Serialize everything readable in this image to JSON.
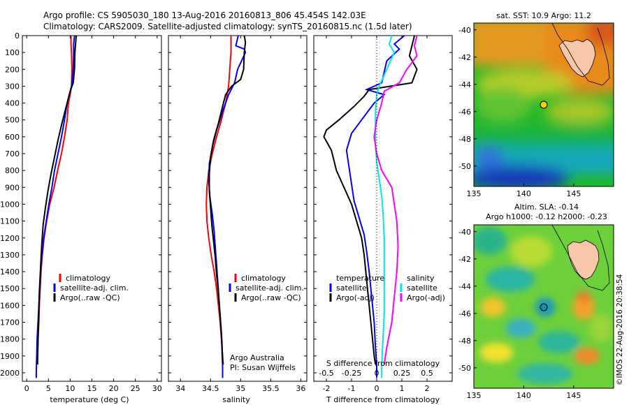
{
  "header": {
    "line1": "Argo profile: CS 5905030_180 13-Aug-2016 20160813_806 45.454S 142.03E",
    "line2": "Climatology: CARS2009. Satellite-adjusted climatology: synTS_20160815.nc (1.5d later)"
  },
  "timestamp": "©IMOS 22-Aug-2016 20:38:54",
  "colors": {
    "climatology": "#ff0000",
    "satellite": "#0000ff",
    "argo": "#000000",
    "sat_cyan": "#00e5ee",
    "argo_magenta": "#ff00ff"
  },
  "depth_axis": {
    "ticks": [
      "0",
      "100",
      "200",
      "300",
      "400",
      "500",
      "600",
      "700",
      "800",
      "900",
      "1000",
      "1100",
      "1200",
      "1300",
      "1400",
      "1500",
      "1600",
      "1700",
      "1800",
      "1900",
      "2000"
    ],
    "range": [
      0,
      2050
    ]
  },
  "chart_data": [
    {
      "type": "line",
      "id": "temperature",
      "xlabel": "temperature (deg C)",
      "xlim": [
        -1,
        31
      ],
      "xticks": [
        "0",
        "5",
        "10",
        "15",
        "20",
        "25",
        "30"
      ],
      "ylim": [
        0,
        2050
      ],
      "legend": [
        "climatology",
        "satellite-adj. clim.",
        "Argo(..raw -QC)"
      ],
      "series": [
        {
          "key": "clim",
          "color": "#ff0000",
          "points": [
            [
              10.2,
              0
            ],
            [
              10.2,
              50
            ],
            [
              10.3,
              100
            ],
            [
              10.4,
              200
            ],
            [
              10.3,
              300
            ],
            [
              10.0,
              350
            ],
            [
              9.6,
              400
            ],
            [
              9.3,
              500
            ],
            [
              8.7,
              600
            ],
            [
              8.0,
              700
            ],
            [
              7.1,
              800
            ],
            [
              6.3,
              900
            ],
            [
              5.3,
              1000
            ],
            [
              4.6,
              1100
            ],
            [
              4.0,
              1200
            ],
            [
              3.6,
              1300
            ],
            [
              3.3,
              1400
            ],
            [
              3.1,
              1500
            ],
            [
              2.9,
              1600
            ],
            [
              2.8,
              1700
            ],
            [
              2.6,
              1800
            ],
            [
              2.5,
              1900
            ],
            [
              2.4,
              1950
            ]
          ]
        },
        {
          "key": "sat",
          "color": "#0000ff",
          "points": [
            [
              11.0,
              0
            ],
            [
              10.8,
              50
            ],
            [
              10.8,
              100
            ],
            [
              10.7,
              200
            ],
            [
              10.3,
              300
            ],
            [
              9.8,
              350
            ],
            [
              9.3,
              400
            ],
            [
              8.7,
              500
            ],
            [
              8.0,
              600
            ],
            [
              7.2,
              700
            ],
            [
              6.4,
              800
            ],
            [
              5.8,
              900
            ],
            [
              5.1,
              1000
            ],
            [
              4.5,
              1100
            ],
            [
              3.9,
              1200
            ],
            [
              3.5,
              1300
            ],
            [
              3.2,
              1400
            ],
            [
              3.0,
              1500
            ],
            [
              2.8,
              1600
            ],
            [
              2.6,
              1700
            ],
            [
              2.4,
              1800
            ],
            [
              2.3,
              1900
            ],
            [
              2.2,
              2000
            ],
            [
              2.2,
              2030
            ]
          ]
        },
        {
          "key": "argo",
          "color": "#000000",
          "points": [
            [
              11.4,
              0
            ],
            [
              11.3,
              30
            ],
            [
              11.1,
              100
            ],
            [
              11.0,
              200
            ],
            [
              10.7,
              280
            ],
            [
              10.0,
              330
            ],
            [
              9.5,
              380
            ],
            [
              8.8,
              450
            ],
            [
              8.0,
              530
            ],
            [
              7.2,
              620
            ],
            [
              6.4,
              720
            ],
            [
              5.6,
              820
            ],
            [
              4.9,
              920
            ],
            [
              4.3,
              1020
            ],
            [
              3.8,
              1120
            ],
            [
              3.5,
              1220
            ],
            [
              3.3,
              1320
            ],
            [
              3.1,
              1420
            ],
            [
              2.9,
              1520
            ],
            [
              2.8,
              1620
            ],
            [
              2.7,
              1720
            ],
            [
              2.6,
              1820
            ],
            [
              2.5,
              1920
            ],
            [
              2.5,
              1950
            ]
          ]
        }
      ]
    },
    {
      "type": "line",
      "id": "salinity",
      "xlabel": "salinity",
      "xlim": [
        33.8,
        36.1
      ],
      "xticks": [
        "34",
        "34.5",
        "35",
        "35.5",
        "36"
      ],
      "ylim": [
        0,
        2050
      ],
      "legend": [
        "climatology",
        "satellite-adj. clim.",
        "Argo(..raw -QC)"
      ],
      "notes": [
        "Argo Australia",
        "PI: Susan Wijffels"
      ],
      "series": [
        {
          "key": "clim",
          "color": "#ff0000",
          "points": [
            [
              34.84,
              0
            ],
            [
              34.84,
              100
            ],
            [
              34.82,
              200
            ],
            [
              34.8,
              300
            ],
            [
              34.75,
              400
            ],
            [
              34.68,
              500
            ],
            [
              34.6,
              600
            ],
            [
              34.53,
              700
            ],
            [
              34.47,
              800
            ],
            [
              34.44,
              900
            ],
            [
              34.43,
              1000
            ],
            [
              34.44,
              1100
            ],
            [
              34.47,
              1200
            ],
            [
              34.51,
              1300
            ],
            [
              34.56,
              1400
            ],
            [
              34.6,
              1500
            ],
            [
              34.63,
              1600
            ],
            [
              34.66,
              1700
            ],
            [
              34.68,
              1800
            ],
            [
              34.7,
              1900
            ],
            [
              34.71,
              1950
            ]
          ]
        },
        {
          "key": "sat",
          "color": "#0000ff",
          "points": [
            [
              34.96,
              0
            ],
            [
              34.92,
              60
            ],
            [
              35.06,
              80
            ],
            [
              35.08,
              100
            ],
            [
              34.95,
              200
            ],
            [
              34.9,
              280
            ],
            [
              34.8,
              350
            ],
            [
              34.7,
              450
            ],
            [
              34.6,
              560
            ],
            [
              34.53,
              660
            ],
            [
              34.48,
              760
            ],
            [
              34.47,
              860
            ],
            [
              34.49,
              960
            ],
            [
              34.53,
              1060
            ],
            [
              34.56,
              1160
            ],
            [
              34.58,
              1260
            ],
            [
              34.6,
              1360
            ],
            [
              34.62,
              1460
            ],
            [
              34.64,
              1560
            ],
            [
              34.66,
              1660
            ],
            [
              34.68,
              1760
            ],
            [
              34.69,
              1860
            ],
            [
              34.7,
              1960
            ],
            [
              34.7,
              2030
            ]
          ]
        },
        {
          "key": "argo",
          "color": "#000000",
          "points": [
            [
              35.06,
              0
            ],
            [
              35.08,
              40
            ],
            [
              35.06,
              100
            ],
            [
              35.05,
              200
            ],
            [
              35.0,
              260
            ],
            [
              34.85,
              300
            ],
            [
              34.75,
              350
            ],
            [
              34.7,
              420
            ],
            [
              34.63,
              520
            ],
            [
              34.55,
              620
            ],
            [
              34.5,
              720
            ],
            [
              34.48,
              820
            ],
            [
              34.48,
              920
            ],
            [
              34.5,
              1020
            ],
            [
              34.52,
              1120
            ],
            [
              34.55,
              1220
            ],
            [
              34.58,
              1320
            ],
            [
              34.6,
              1420
            ],
            [
              34.63,
              1520
            ],
            [
              34.65,
              1620
            ],
            [
              34.67,
              1720
            ],
            [
              34.69,
              1820
            ],
            [
              34.7,
              1920
            ],
            [
              34.71,
              1950
            ]
          ]
        }
      ]
    },
    {
      "type": "line",
      "id": "difference",
      "xlabel": "T difference from climatology",
      "xlabel_top": "S difference from climatology",
      "xlim": [
        -2.5,
        3.0
      ],
      "xticks": [
        "-2",
        "-1",
        "0",
        "1",
        "2"
      ],
      "xticks_top": [
        "-0.5",
        "-0.25",
        "0",
        "0.25",
        "0.5"
      ],
      "ylim": [
        0,
        2050
      ],
      "legend_temperature": [
        "temperature",
        "satellite",
        "Argo(-adj)"
      ],
      "legend_salinity": [
        "salinity",
        "satellite",
        "Argo(-adj)"
      ],
      "series": [
        {
          "key": "t_sat",
          "color": "#0000ff",
          "points": [
            [
              1.1,
              0
            ],
            [
              0.7,
              50
            ],
            [
              0.9,
              80
            ],
            [
              0.4,
              150
            ],
            [
              0.2,
              280
            ],
            [
              -0.4,
              320
            ],
            [
              0.3,
              350
            ],
            [
              -0.1,
              400
            ],
            [
              -0.6,
              500
            ],
            [
              -1.0,
              580
            ],
            [
              -1.2,
              680
            ],
            [
              -1.1,
              780
            ],
            [
              -1.0,
              880
            ],
            [
              -0.9,
              980
            ],
            [
              -0.7,
              1080
            ],
            [
              -0.5,
              1180
            ],
            [
              -0.4,
              1280
            ],
            [
              -0.3,
              1400
            ],
            [
              -0.2,
              1550
            ],
            [
              -0.1,
              1700
            ],
            [
              -0.05,
              1850
            ],
            [
              0,
              1950
            ],
            [
              0,
              2030
            ]
          ]
        },
        {
          "key": "t_argo",
          "color": "#000000",
          "points": [
            [
              1.5,
              0
            ],
            [
              1.4,
              60
            ],
            [
              1.3,
              120
            ],
            [
              1.6,
              200
            ],
            [
              1.4,
              280
            ],
            [
              -0.3,
              320
            ],
            [
              -0.5,
              360
            ],
            [
              -0.9,
              420
            ],
            [
              -1.5,
              500
            ],
            [
              -2.0,
              560
            ],
            [
              -2.1,
              600
            ],
            [
              -1.8,
              680
            ],
            [
              -1.6,
              800
            ],
            [
              -1.3,
              900
            ],
            [
              -1.0,
              1000
            ],
            [
              -0.8,
              1100
            ],
            [
              -0.6,
              1200
            ],
            [
              -0.5,
              1300
            ],
            [
              -0.4,
              1450
            ],
            [
              -0.3,
              1600
            ],
            [
              -0.2,
              1750
            ],
            [
              -0.1,
              1900
            ],
            [
              -0.05,
              1950
            ]
          ]
        },
        {
          "key": "s_sat",
          "color": "#00e5ee",
          "points": [
            [
              0.6,
              0
            ],
            [
              0.5,
              50
            ],
            [
              0.7,
              100
            ],
            [
              0.4,
              200
            ],
            [
              0.1,
              300
            ],
            [
              0.0,
              350
            ],
            [
              -0.05,
              450
            ],
            [
              -0.05,
              550
            ],
            [
              -0.05,
              650
            ],
            [
              0.0,
              750
            ],
            [
              0.1,
              850
            ],
            [
              0.2,
              950
            ],
            [
              0.25,
              1050
            ],
            [
              0.3,
              1200
            ],
            [
              0.3,
              1350
            ],
            [
              0.3,
              1500
            ],
            [
              0.3,
              1650
            ],
            [
              0.25,
              1800
            ],
            [
              0.2,
              1950
            ],
            [
              0.2,
              2030
            ]
          ]
        },
        {
          "key": "s_argo",
          "color": "#ff00ff",
          "points": [
            [
              1.6,
              0
            ],
            [
              1.5,
              60
            ],
            [
              1.6,
              120
            ],
            [
              1.2,
              200
            ],
            [
              0.9,
              280
            ],
            [
              0.3,
              330
            ],
            [
              0.2,
              400
            ],
            [
              0.0,
              500
            ],
            [
              -0.1,
              600
            ],
            [
              0.0,
              700
            ],
            [
              0.2,
              800
            ],
            [
              0.6,
              900
            ],
            [
              0.7,
              1000
            ],
            [
              0.8,
              1100
            ],
            [
              0.85,
              1250
            ],
            [
              0.8,
              1400
            ],
            [
              0.7,
              1550
            ],
            [
              0.6,
              1700
            ],
            [
              0.4,
              1850
            ],
            [
              0.3,
              1950
            ]
          ]
        }
      ]
    },
    {
      "type": "heatmap",
      "id": "sst_map",
      "title": "sat. SST: 10.9 Argo: 11.2",
      "xlim": [
        135,
        149
      ],
      "ylim": [
        -51.5,
        -39.5
      ],
      "xticks": [
        "135",
        "140",
        "145"
      ],
      "yticks": [
        "-40",
        "-42",
        "-44",
        "-46",
        "-48",
        "-50"
      ],
      "argo_position": [
        142.03,
        -45.454
      ]
    },
    {
      "type": "heatmap",
      "id": "sla_map",
      "title": "Altim. SLA: -0.14",
      "subtitle": "Argo h1000: -0.12 h2000: -0.23",
      "xlim": [
        135,
        149
      ],
      "ylim": [
        -51.5,
        -39.5
      ],
      "xticks": [
        "135",
        "140",
        "145"
      ],
      "yticks": [
        "-40",
        "-42",
        "-44",
        "-46",
        "-48",
        "-50"
      ],
      "argo_position": [
        142.03,
        -45.454
      ]
    }
  ]
}
